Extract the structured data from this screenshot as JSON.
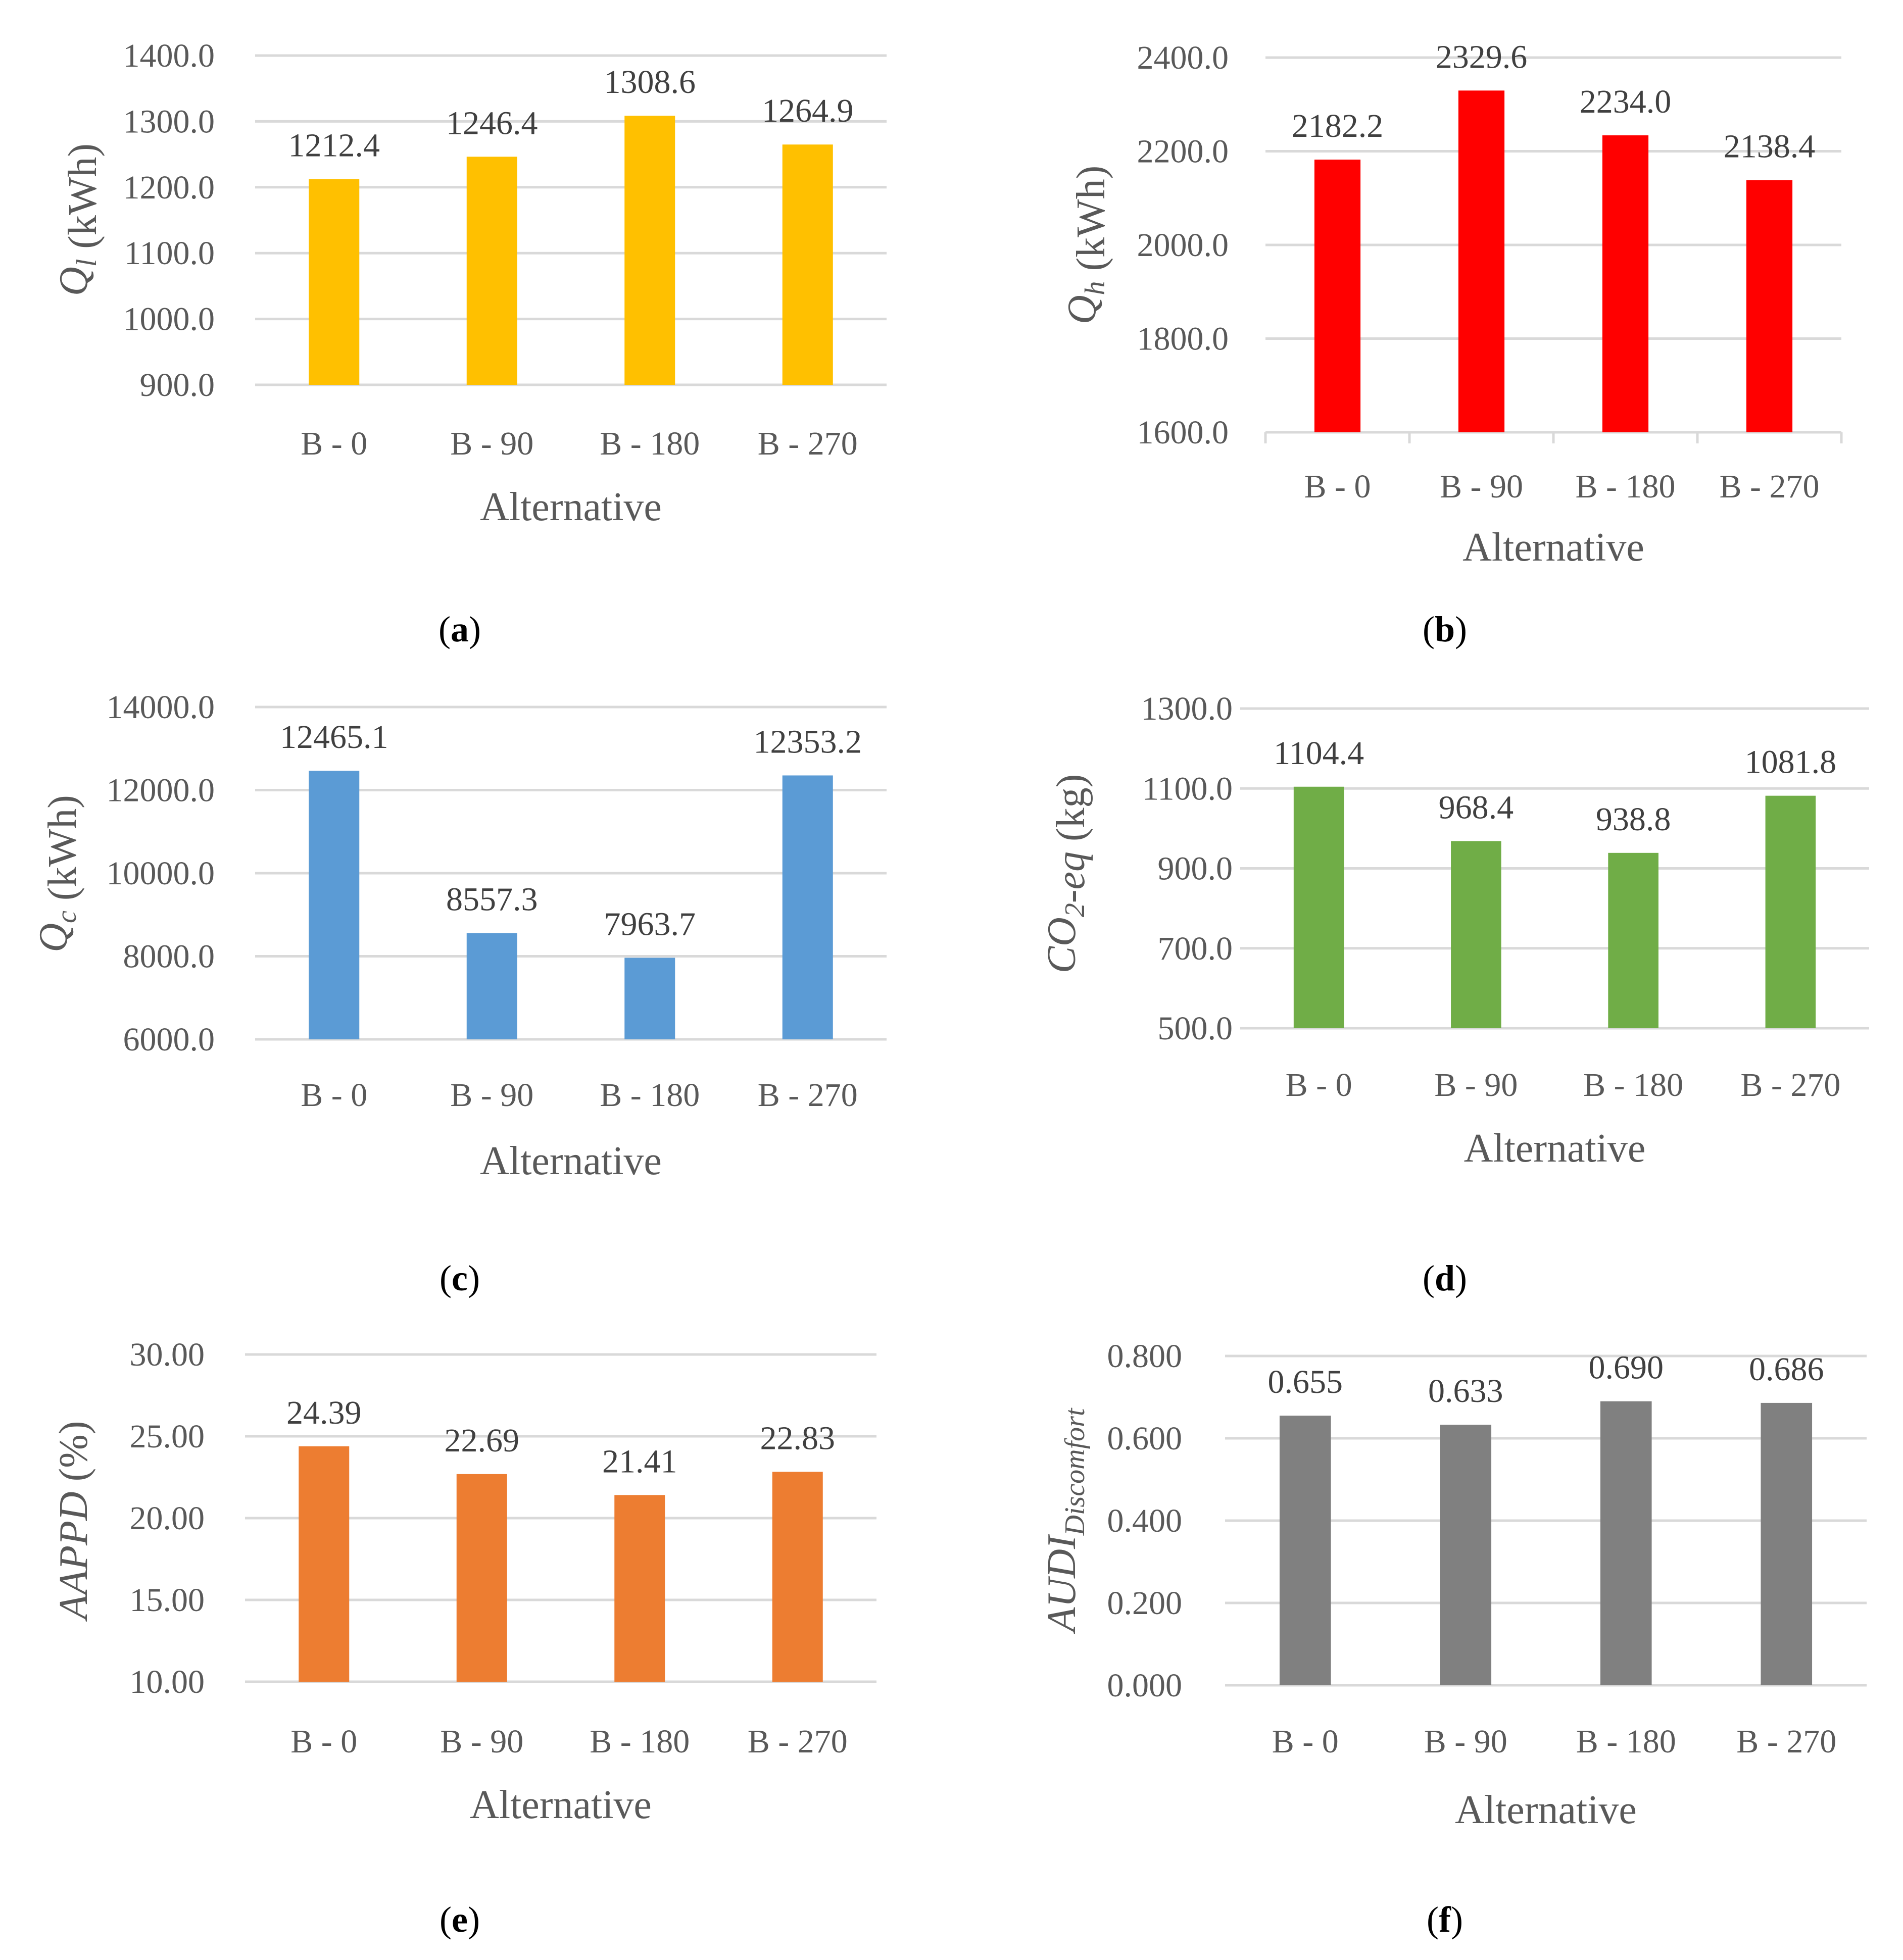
{
  "chart_data": [
    {
      "id": "a",
      "type": "bar",
      "panel_label": "a",
      "categories": [
        "B - 0",
        "B - 90",
        "B - 180",
        "B - 270"
      ],
      "values": [
        1212.4,
        1246.4,
        1308.6,
        1264.9
      ],
      "value_labels": [
        "1212.4",
        "1246.4",
        "1308.6",
        "1264.9"
      ],
      "color": "#FFC000",
      "ylim": [
        900,
        1400
      ],
      "yticks": [
        "900.0",
        "1000.0",
        "1100.0",
        "1200.0",
        "1300.0",
        "1400.0"
      ],
      "xlabel": "Alternative",
      "ylabel": {
        "main": "Q",
        "sub": "l",
        "unit": " (kWh)"
      }
    },
    {
      "id": "b",
      "type": "bar",
      "panel_label": "b",
      "categories": [
        "B - 0",
        "B - 90",
        "B - 180",
        "B - 270"
      ],
      "values": [
        2182.2,
        2329.6,
        2234.0,
        2138.4
      ],
      "value_labels": [
        "2182.2",
        "2329.6",
        "2234.0",
        "2138.4"
      ],
      "color": "#FF0000",
      "ylim": [
        1600,
        2400
      ],
      "yticks": [
        "1600.0",
        "1800.0",
        "2000.0",
        "2200.0",
        "2400.0"
      ],
      "xlabel": "Alternative",
      "ylabel": {
        "main": "Q",
        "sub": "h",
        "unit": " (kWh)"
      }
    },
    {
      "id": "c",
      "type": "bar",
      "panel_label": "c",
      "categories": [
        "B - 0",
        "B - 90",
        "B - 180",
        "B - 270"
      ],
      "values": [
        12465.1,
        8557.3,
        7963.7,
        12353.2
      ],
      "value_labels": [
        "12465.1",
        "8557.3",
        "7963.7",
        "12353.2"
      ],
      "color": "#5B9BD5",
      "ylim": [
        6000,
        14000
      ],
      "yticks": [
        "6000.0",
        "8000.0",
        "10000.0",
        "12000.0",
        "14000.0"
      ],
      "xlabel": "Alternative",
      "ylabel": {
        "main": "Q",
        "sub": "c",
        "unit": " (kWh)"
      }
    },
    {
      "id": "d",
      "type": "bar",
      "panel_label": "d",
      "categories": [
        "B - 0",
        "B - 90",
        "B - 180",
        "B - 270"
      ],
      "values": [
        1104.4,
        968.4,
        938.8,
        1081.8
      ],
      "value_labels": [
        "1104.4",
        "968.4",
        "938.8",
        "1081.8"
      ],
      "color": "#70AD47",
      "ylim": [
        500,
        1300
      ],
      "yticks": [
        "500.0",
        "700.0",
        "900.0",
        "1100.0",
        "1300.0"
      ],
      "xlabel": "Alternative",
      "ylabel": {
        "main": "CO",
        "sub": "2",
        "tail": "-eq",
        "unit": " (kg)"
      }
    },
    {
      "id": "e",
      "type": "bar",
      "panel_label": "e",
      "categories": [
        "B - 0",
        "B - 90",
        "B - 180",
        "B - 270"
      ],
      "values": [
        24.39,
        22.69,
        21.41,
        22.83
      ],
      "value_labels": [
        "24.39",
        "22.69",
        "21.41",
        "22.83"
      ],
      "color": "#ED7D31",
      "ylim": [
        10,
        30
      ],
      "yticks": [
        "10.00",
        "15.00",
        "20.00",
        "25.00",
        "30.00"
      ],
      "xlabel": "Alternative",
      "ylabel": {
        "main": "AAPPD",
        "sub": "",
        "unit": " (%)"
      }
    },
    {
      "id": "f",
      "type": "bar",
      "panel_label": "f",
      "categories": [
        "B - 0",
        "B - 90",
        "B - 180",
        "B - 270"
      ],
      "values": [
        0.655,
        0.633,
        0.69,
        0.686
      ],
      "value_labels": [
        "0.655",
        "0.633",
        "0.690",
        "0.686"
      ],
      "color": "#808080",
      "ylim": [
        0,
        0.8
      ],
      "yticks": [
        "0.000",
        "0.200",
        "0.400",
        "0.600",
        "0.800"
      ],
      "xlabel": "Alternative",
      "ylabel": {
        "main": "AUDI",
        "sub": "Discomfort",
        "unit": ""
      }
    }
  ]
}
